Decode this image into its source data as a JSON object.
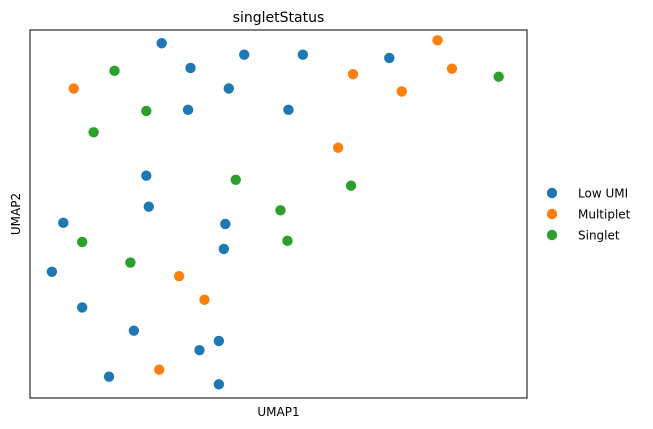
{
  "chart_data": {
    "type": "scatter",
    "title": "singletStatus",
    "xlabel": "UMAP1",
    "ylabel": "UMAP2",
    "xlim": [
      0,
      10
    ],
    "ylim": [
      0,
      10
    ],
    "grid": false,
    "legend_position": "right",
    "series": [
      {
        "name": "Low UMI",
        "color": "#1f77b4",
        "points": [
          {
            "x": 2.65,
            "y": 9.64
          },
          {
            "x": 3.23,
            "y": 8.97
          },
          {
            "x": 4.31,
            "y": 9.33
          },
          {
            "x": 5.49,
            "y": 9.33
          },
          {
            "x": 7.23,
            "y": 9.24
          },
          {
            "x": 4.0,
            "y": 8.41
          },
          {
            "x": 3.18,
            "y": 7.83
          },
          {
            "x": 5.2,
            "y": 7.83
          },
          {
            "x": 2.34,
            "y": 6.04
          },
          {
            "x": 2.39,
            "y": 5.2
          },
          {
            "x": 0.67,
            "y": 4.76
          },
          {
            "x": 3.93,
            "y": 4.73
          },
          {
            "x": 3.9,
            "y": 4.05
          },
          {
            "x": 0.44,
            "y": 3.43
          },
          {
            "x": 1.05,
            "y": 2.46
          },
          {
            "x": 2.09,
            "y": 1.83
          },
          {
            "x": 3.8,
            "y": 1.55
          },
          {
            "x": 3.41,
            "y": 1.3
          },
          {
            "x": 1.59,
            "y": 0.58
          },
          {
            "x": 3.8,
            "y": 0.37
          }
        ]
      },
      {
        "name": "Multiplet",
        "color": "#ff7f0e",
        "points": [
          {
            "x": 8.2,
            "y": 9.72
          },
          {
            "x": 8.49,
            "y": 8.95
          },
          {
            "x": 6.5,
            "y": 8.8
          },
          {
            "x": 7.48,
            "y": 8.33
          },
          {
            "x": 0.88,
            "y": 8.41
          },
          {
            "x": 6.2,
            "y": 6.8
          },
          {
            "x": 3.0,
            "y": 3.31
          },
          {
            "x": 3.51,
            "y": 2.67
          },
          {
            "x": 2.6,
            "y": 0.77
          }
        ]
      },
      {
        "name": "Singlet",
        "color": "#2ca02c",
        "points": [
          {
            "x": 1.7,
            "y": 8.89
          },
          {
            "x": 9.43,
            "y": 8.73
          },
          {
            "x": 2.34,
            "y": 7.8
          },
          {
            "x": 1.28,
            "y": 7.22
          },
          {
            "x": 4.14,
            "y": 5.93
          },
          {
            "x": 6.46,
            "y": 5.77
          },
          {
            "x": 5.04,
            "y": 5.1
          },
          {
            "x": 1.05,
            "y": 4.24
          },
          {
            "x": 5.18,
            "y": 4.27
          },
          {
            "x": 2.02,
            "y": 3.68
          }
        ]
      }
    ]
  }
}
